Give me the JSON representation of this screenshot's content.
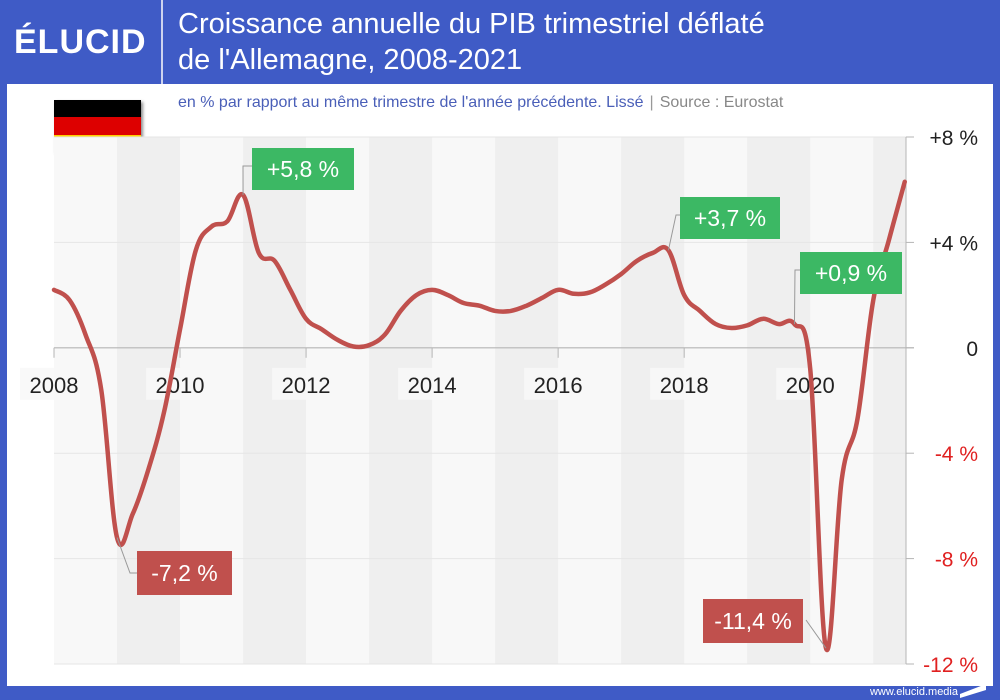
{
  "header": {
    "logo": "ÉLUCID",
    "title_line1": "Croissance annuelle du PIB trimestriel déflaté",
    "title_line2": "de l'Allemagne, 2008-2021"
  },
  "subtitle": {
    "description": "en % par rapport au même trimestre de l'année précédente. Lissé",
    "separator": "|",
    "source": "Source : Eurostat"
  },
  "flag": {
    "country": "Germany",
    "colors": [
      "#000000",
      "#dd0000",
      "#ffce00"
    ]
  },
  "footer": {
    "url": "www.elucid.media"
  },
  "colors": {
    "brand": "#3f5bc6",
    "line": "#c0504d",
    "positive_callout": "#3cb864",
    "negative_callout": "#c0504d",
    "negative_tick": "#e02020",
    "positive_tick": "#222222"
  },
  "chart_data": {
    "type": "line",
    "title": "Croissance annuelle du PIB trimestriel déflaté de l'Allemagne, 2008-2021",
    "subtitle": "en % par rapport au même trimestre de l'année précédente. Lissé",
    "xlabel": "",
    "ylabel": "",
    "xlim": [
      2008,
      2021.5
    ],
    "ylim": [
      -12,
      8
    ],
    "x_ticks": [
      2008,
      2010,
      2012,
      2014,
      2016,
      2018,
      2020
    ],
    "x_tick_labels": [
      "2008",
      "2010",
      "2012",
      "2014",
      "2016",
      "2018",
      "2020"
    ],
    "y_ticks": [
      8,
      4,
      0,
      -4,
      -8,
      -12
    ],
    "y_tick_labels": [
      "+8 %",
      "+4 %",
      "0",
      "-4 %",
      "-8 %",
      "-12 %"
    ],
    "grid": true,
    "alternating_year_bands": true,
    "series": [
      {
        "name": "PIB Allemagne (glissement annuel, %)",
        "x": [
          2008.0,
          2008.25,
          2008.5,
          2008.75,
          2009.0,
          2009.25,
          2009.5,
          2009.75,
          2010.0,
          2010.25,
          2010.5,
          2010.75,
          2011.0,
          2011.25,
          2011.5,
          2011.75,
          2012.0,
          2012.25,
          2012.5,
          2012.75,
          2013.0,
          2013.25,
          2013.5,
          2013.75,
          2014.0,
          2014.25,
          2014.5,
          2014.75,
          2015.0,
          2015.25,
          2015.5,
          2015.75,
          2016.0,
          2016.25,
          2016.5,
          2016.75,
          2017.0,
          2017.25,
          2017.5,
          2017.75,
          2018.0,
          2018.25,
          2018.5,
          2018.75,
          2019.0,
          2019.25,
          2019.5,
          2019.75,
          2020.0,
          2020.25,
          2020.5,
          2020.75,
          2021.0,
          2021.25,
          2021.5
        ],
        "values": [
          2.2,
          1.8,
          0.5,
          -1.6,
          -7.2,
          -6.3,
          -4.6,
          -2.4,
          0.7,
          3.7,
          4.6,
          4.8,
          5.8,
          3.6,
          3.3,
          2.2,
          1.1,
          0.7,
          0.3,
          0.05,
          0.1,
          0.5,
          1.4,
          2.0,
          2.2,
          2.0,
          1.7,
          1.6,
          1.4,
          1.4,
          1.6,
          1.9,
          2.2,
          2.05,
          2.1,
          2.4,
          2.8,
          3.3,
          3.6,
          3.7,
          2.0,
          1.4,
          0.9,
          0.75,
          0.85,
          1.1,
          0.9,
          0.9,
          -0.8,
          -11.4,
          -5.0,
          -2.7,
          1.8,
          4.1,
          6.3
        ]
      }
    ],
    "annotations": [
      {
        "label": "+5,8 %",
        "x": 2011.0,
        "value": 5.8,
        "kind": "positive"
      },
      {
        "label": "-7,2 %",
        "x": 2009.0,
        "value": -7.2,
        "kind": "negative"
      },
      {
        "label": "+3,7 %",
        "x": 2017.75,
        "value": 3.7,
        "kind": "positive"
      },
      {
        "label": "+0,9 %",
        "x": 2019.75,
        "value": 0.9,
        "kind": "positive"
      },
      {
        "label": "-11,4 %",
        "x": 2020.25,
        "value": -11.4,
        "kind": "negative"
      }
    ]
  }
}
